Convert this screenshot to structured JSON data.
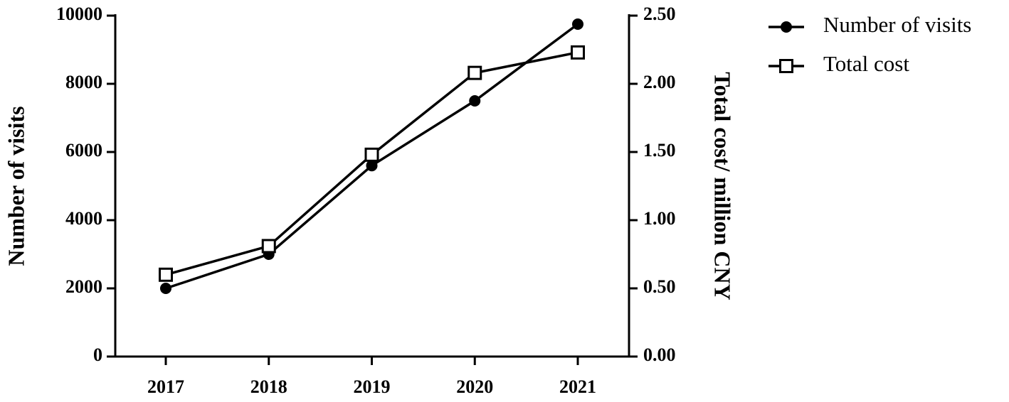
{
  "chart_data": {
    "type": "line",
    "categories": [
      "2017",
      "2018",
      "2019",
      "2020",
      "2021"
    ],
    "series": [
      {
        "name": "Number of visits",
        "color": "#000000",
        "marker": "circle",
        "values": [
          2000,
          3000,
          5600,
          7500,
          9750
        ]
      },
      {
        "name": "Total cost",
        "color": "#000000",
        "marker": "open-square",
        "axis": "y2",
        "values": [
          0.6,
          0.81,
          1.48,
          2.08,
          2.23
        ]
      }
    ],
    "ylabel": "Number of visits",
    "y2label": "Total cost/ million CNY",
    "ylim": [
      0,
      10000
    ],
    "yticks": [
      0,
      2000,
      4000,
      6000,
      8000,
      10000
    ],
    "y2lim": [
      0,
      2.5
    ],
    "y2ticks": [
      {
        "value": 0,
        "label": "0.00"
      },
      {
        "value": 0.5,
        "label": "0.50"
      },
      {
        "value": 1,
        "label": "1.00"
      },
      {
        "value": 1.5,
        "label": "1.50"
      },
      {
        "value": 2,
        "label": "2.00"
      },
      {
        "value": 2.5,
        "label": "2.50"
      }
    ],
    "legend": "top-right",
    "grid": false
  }
}
